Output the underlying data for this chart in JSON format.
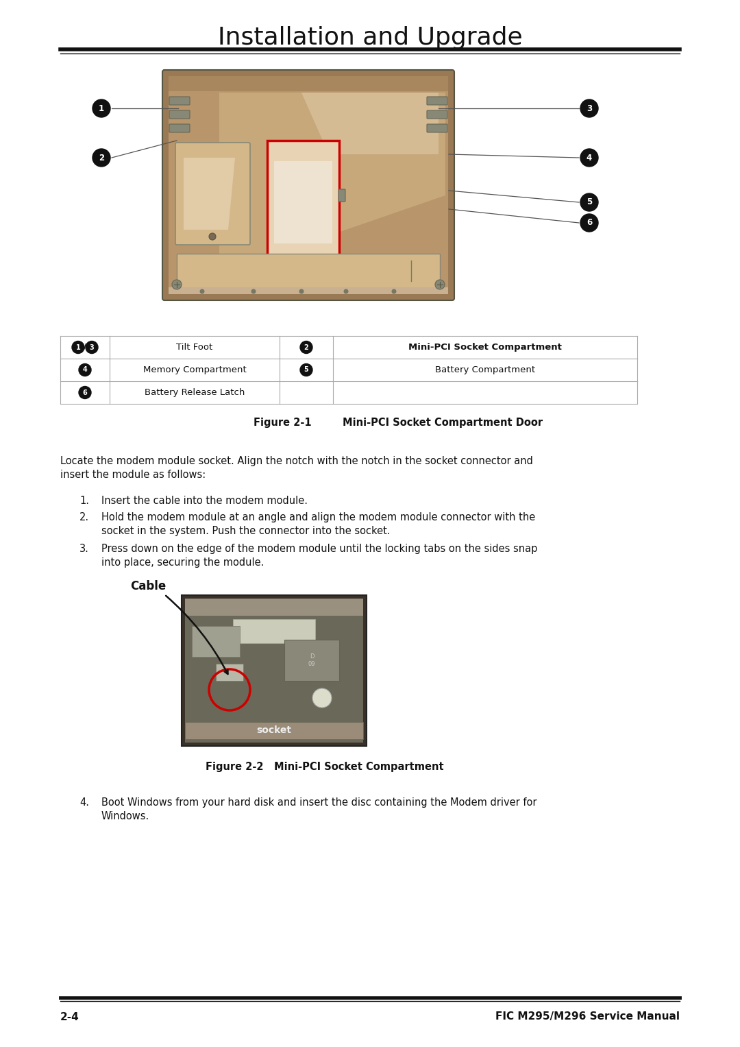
{
  "page_title": "Installation and Upgrade",
  "bg_color": "#ffffff",
  "title_fontsize": 26,
  "body_fontsize": 10.5,
  "footer_left": "2-4",
  "footer_right": "FIC M295/M296 Service Manual",
  "fig1_caption_label": "Figure 2-1",
  "fig1_caption_text": "Mini-PCI Socket Compartment Door",
  "fig2_caption_label": "Figure 2-2",
  "fig2_caption_text": "Mini-PCI Socket Compartment",
  "table_data": [
    [
      "1/3",
      "Tilt Foot",
      "2",
      "Mini-PCI Socket Compartment"
    ],
    [
      "4",
      "Memory Compartment",
      "5",
      "Battery Compartment"
    ],
    [
      "6",
      "Battery Release Latch",
      "",
      ""
    ]
  ],
  "intro_line1": "Locate the modem module socket. Align the notch with the notch in the socket connector and",
  "intro_line2": "insert the module as follows:",
  "step1": "Insert the cable into the modem module.",
  "step2a": "Hold the modem module at an angle and align the modem module connector with the",
  "step2b": "socket in the system. Push the connector into the socket.",
  "step3a": "Press down on the edge of the modem module until the locking tabs on the sides snap",
  "step3b": "into place, securing the module.",
  "step4a": "Boot Windows from your hard disk and insert the disc containing the Modem driver for",
  "step4b": "Windows.",
  "cable_label": "Cable",
  "socket_label": "socket",
  "laptop_color": "#b8956a",
  "laptop_dark": "#9a7a55",
  "laptop_light": "#d4b88a",
  "laptop_lighter": "#e8d4b4"
}
